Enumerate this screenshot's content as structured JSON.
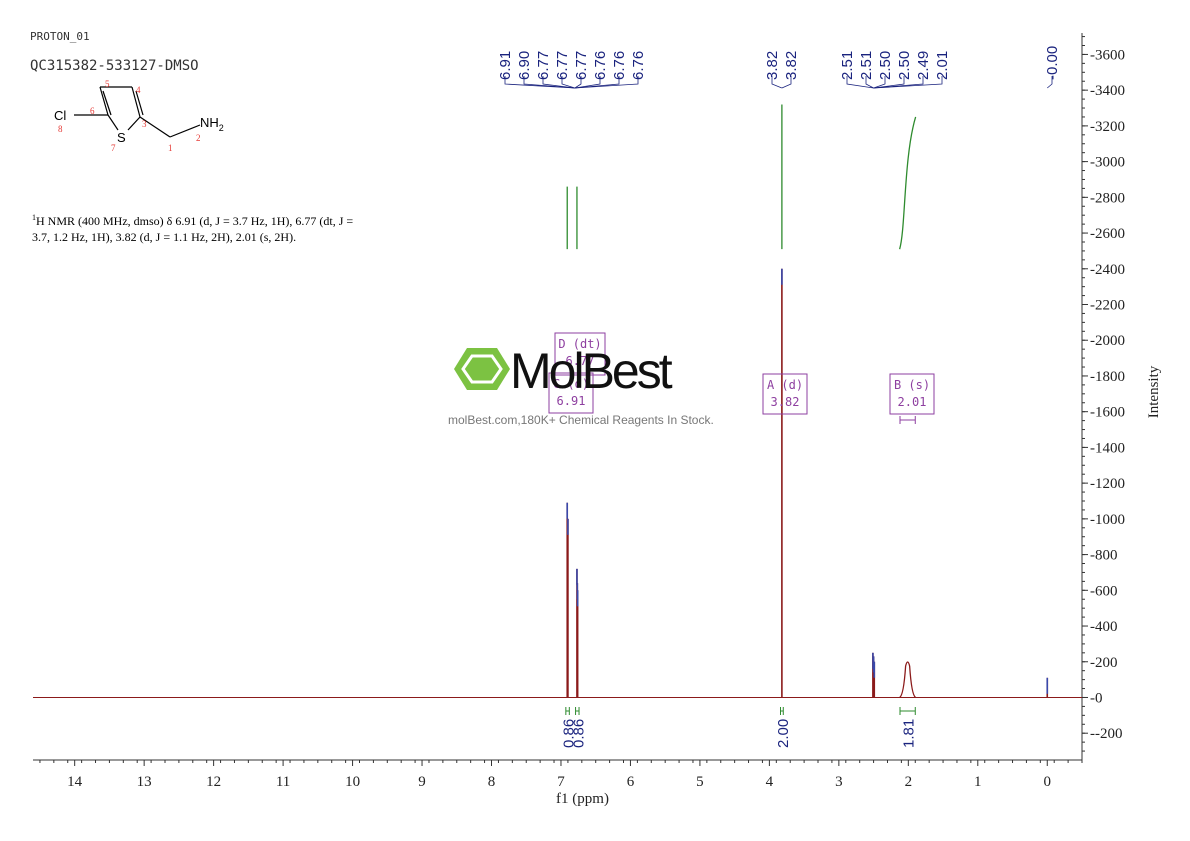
{
  "header": {
    "experiment": "PROTON_01",
    "sample": "QC315382-533127-DMSO"
  },
  "structure": {
    "cl_label": "Cl",
    "s_label": "S",
    "nh2_label": "NH",
    "nh2_sub": "2",
    "atom_numbers": [
      "1",
      "2",
      "3",
      "4",
      "5",
      "6",
      "7",
      "8"
    ]
  },
  "summary": {
    "nucleus_sup": "1",
    "text": "H NMR (400 MHz, dmso) δ 6.91 (d, J = 3.7 Hz, 1H), 6.77 (dt, J = 3.7, 1.2 Hz, 1H), 3.82 (d, J = 1.1 Hz, 2H), 2.01 (s, 2H)."
  },
  "watermark": {
    "brand": "MolBest",
    "tagline": "molBest.com,180K+ Chemical Reagents In Stock."
  },
  "colors": {
    "spectrum": "#8b1a1a",
    "peak_labels": "#1a237e",
    "integral": "#2e8b2e",
    "multiplet_box": "#8e3fa0",
    "axis": "#333333",
    "watermark_green": "#7cc242"
  },
  "chart_data": {
    "type": "line",
    "title": "",
    "xlabel": "f1 (ppm)",
    "ylabel": "Intensity",
    "xlim": [
      14.6,
      -0.5
    ],
    "ylim": [
      -350,
      3720
    ],
    "x_reversed": true,
    "x_ticks": [
      14,
      13,
      12,
      11,
      10,
      9,
      8,
      7,
      6,
      5,
      4,
      3,
      2,
      1,
      0
    ],
    "y_ticks": [
      -200,
      0,
      200,
      400,
      600,
      800,
      1000,
      1200,
      1400,
      1600,
      1800,
      2000,
      2200,
      2400,
      2600,
      2800,
      3000,
      3200,
      3400,
      3600
    ],
    "series": [
      {
        "peaks": [
          {
            "ppm": 6.91,
            "height": 1090
          },
          {
            "ppm": 6.9,
            "height": 1000
          },
          {
            "ppm": 6.77,
            "height": 720
          },
          {
            "ppm": 6.765,
            "height": 640
          },
          {
            "ppm": 6.76,
            "height": 600
          },
          {
            "ppm": 3.82,
            "height": 2400
          },
          {
            "ppm": 2.51,
            "height": 250
          },
          {
            "ppm": 2.5,
            "height": 230
          },
          {
            "ppm": 2.49,
            "height": 200
          },
          {
            "ppm": 2.01,
            "height": 210
          },
          {
            "ppm": 0.0,
            "height": 110
          }
        ]
      }
    ],
    "peak_labels": {
      "group1": [
        "6.91",
        "6.90",
        "6.77",
        "6.77",
        "6.77",
        "6.76",
        "6.76",
        "6.76"
      ],
      "group2": [
        "3.82",
        "3.82"
      ],
      "group3": [
        "2.51",
        "2.51",
        "2.50",
        "2.50",
        "2.49",
        "2.01"
      ],
      "group4": [
        "-0.00"
      ]
    },
    "integrals": [
      {
        "from": 6.93,
        "to": 6.88,
        "value": "0.86"
      },
      {
        "from": 6.79,
        "to": 6.74,
        "value": "0.86"
      },
      {
        "from": 3.84,
        "to": 3.8,
        "value": "2.00"
      },
      {
        "from": 2.12,
        "to": 1.9,
        "value": "1.81"
      }
    ],
    "integral_curves": [
      {
        "ppm": 6.91,
        "y_start": 2510,
        "y_end": 2860
      },
      {
        "ppm": 6.77,
        "y_start": 2510,
        "y_end": 2860
      },
      {
        "ppm": 3.82,
        "y_start": 2510,
        "y_end": 3320
      },
      {
        "ppm": 2.01,
        "y_start": 2510,
        "y_end": 3250
      }
    ],
    "multiplets": [
      {
        "label": "D (dt)",
        "shift": "6.77",
        "ppm": 6.77
      },
      {
        "label": "C (d)",
        "shift": "6.91",
        "ppm": 6.91
      },
      {
        "label": "A (d)",
        "shift": "3.82",
        "ppm": 3.82
      },
      {
        "label": "B (s)",
        "shift": "2.01",
        "ppm": 2.01
      }
    ]
  }
}
